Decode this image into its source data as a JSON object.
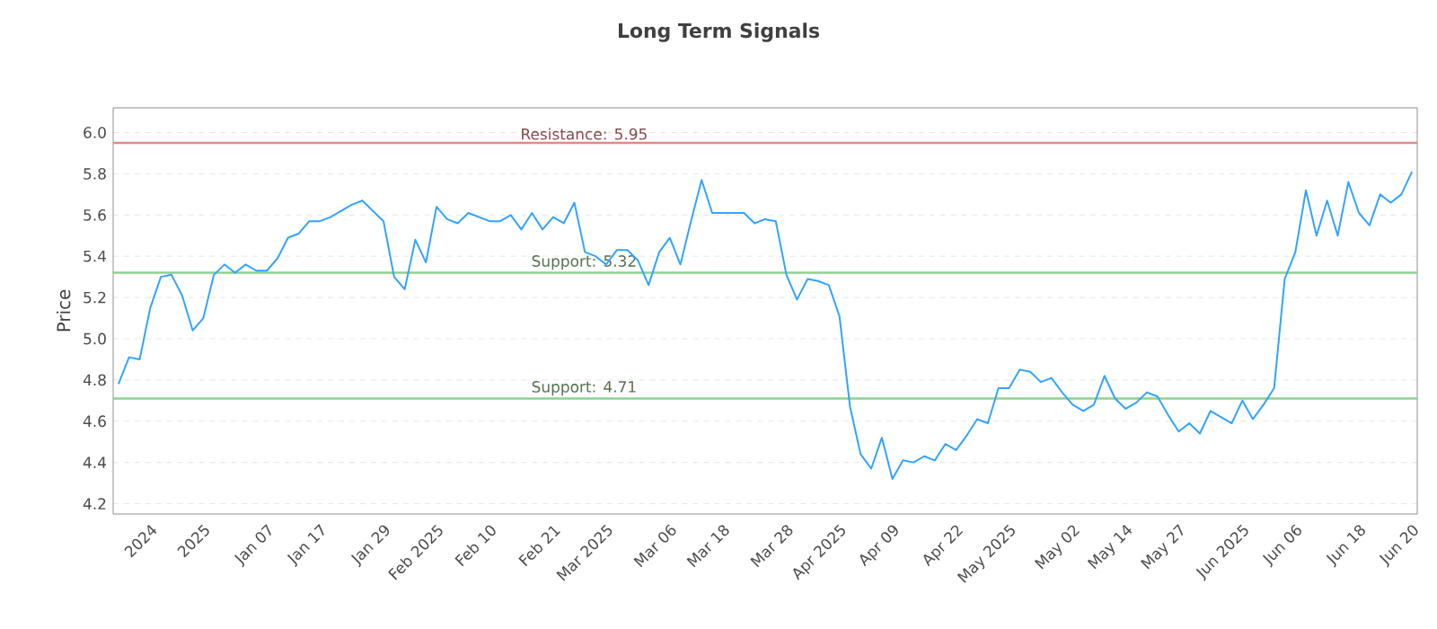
{
  "chart_data": {
    "type": "line",
    "title": "Long Term Signals",
    "ylabel": "Price",
    "categories": [
      null,
      null,
      null,
      "2024",
      null,
      null,
      null,
      null,
      "2025",
      null,
      null,
      null,
      null,
      null,
      "Jan 07",
      null,
      null,
      null,
      null,
      "Jan 17",
      null,
      null,
      null,
      null,
      null,
      "Jan 29",
      null,
      null,
      null,
      null,
      "Feb 2025",
      null,
      null,
      null,
      null,
      "Feb 10",
      null,
      null,
      null,
      null,
      null,
      "Feb 21",
      null,
      null,
      null,
      null,
      "Mar 2025",
      null,
      null,
      null,
      null,
      null,
      "Mar 06",
      null,
      null,
      null,
      null,
      "Mar 18",
      null,
      null,
      null,
      null,
      null,
      "Mar 28",
      null,
      null,
      null,
      null,
      "Apr 2025",
      null,
      null,
      null,
      null,
      "Apr 09",
      null,
      null,
      null,
      null,
      null,
      "Apr 22",
      null,
      null,
      null,
      null,
      "May 2025",
      null,
      null,
      null,
      null,
      null,
      "May 02",
      null,
      null,
      null,
      null,
      "May 14",
      null,
      null,
      null,
      null,
      "May 27",
      null,
      null,
      null,
      null,
      null,
      "Jun 2025",
      null,
      null,
      null,
      null,
      "Jun 06",
      null,
      null,
      null,
      null,
      null,
      "Jun 18",
      null,
      null,
      null,
      null,
      "Jun 20"
    ],
    "values": [
      4.78,
      4.91,
      4.9,
      5.15,
      5.3,
      5.31,
      5.21,
      5.04,
      5.1,
      5.31,
      5.36,
      5.32,
      5.36,
      5.33,
      5.33,
      5.39,
      5.49,
      5.51,
      5.57,
      5.57,
      5.59,
      5.62,
      5.65,
      5.67,
      5.62,
      5.57,
      5.3,
      5.24,
      5.48,
      5.37,
      5.64,
      5.58,
      5.56,
      5.61,
      5.59,
      5.57,
      5.57,
      5.6,
      5.53,
      5.61,
      5.53,
      5.59,
      5.56,
      5.66,
      5.42,
      5.4,
      5.36,
      5.43,
      5.43,
      5.38,
      5.26,
      5.42,
      5.49,
      5.36,
      5.57,
      5.77,
      5.61,
      5.61,
      5.61,
      5.61,
      5.56,
      5.58,
      5.57,
      5.31,
      5.19,
      5.29,
      5.28,
      5.26,
      5.11,
      4.67,
      4.44,
      4.37,
      4.52,
      4.32,
      4.41,
      4.4,
      4.43,
      4.41,
      4.49,
      4.46,
      4.53,
      4.61,
      4.59,
      4.76,
      4.76,
      4.85,
      4.84,
      4.79,
      4.81,
      4.74,
      4.68,
      4.65,
      4.68,
      4.82,
      4.71,
      4.66,
      4.69,
      4.74,
      4.72,
      4.63,
      4.55,
      4.59,
      4.54,
      4.65,
      4.62,
      4.59,
      4.7,
      4.61,
      4.68,
      4.76,
      5.29,
      5.42,
      5.72,
      5.5,
      5.67,
      5.5,
      5.76,
      5.61,
      5.55,
      5.7,
      5.66,
      5.7,
      5.81
    ],
    "color": "#33a3ff",
    "ylim": [
      4.15,
      6.12
    ],
    "yticks": [
      4.2,
      4.4,
      4.6,
      4.8,
      {
        "value": 5.0,
        "label": "5.0"
      },
      5.2,
      5.4,
      5.6,
      5.8,
      {
        "value": 6.0,
        "label": "6.0"
      }
    ],
    "grid": "y",
    "marker": "none",
    "line_style": "solid",
    "ref_lines": [
      {
        "axis": "y",
        "value": 5.95,
        "label": "Resistance: 5.95",
        "color": "#e08a8a"
      },
      {
        "axis": "y",
        "value": 5.32,
        "label": "Support: 5.32",
        "color": "#8fd18f"
      },
      {
        "axis": "y",
        "value": 4.71,
        "label": "Support: 4.71",
        "color": "#8fd18f"
      }
    ]
  }
}
